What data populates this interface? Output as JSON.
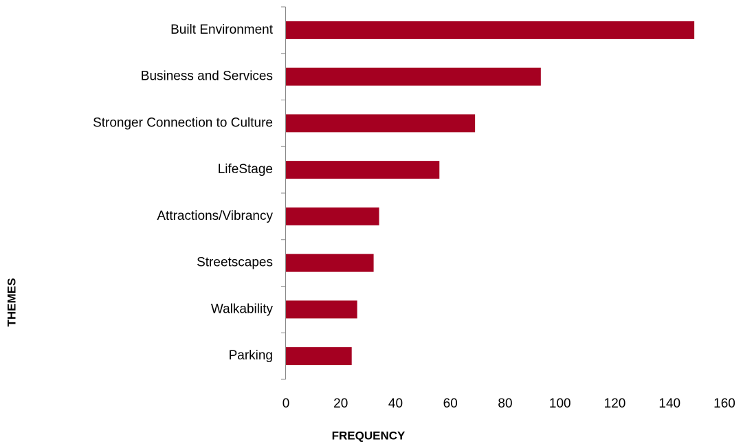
{
  "chart_data": {
    "type": "bar",
    "orientation": "horizontal",
    "xlabel": "FREQUENCY",
    "ylabel": "THEMES",
    "categories": [
      "Built Environment",
      "Business and Services",
      "Stronger Connection to Culture",
      "LifeStage",
      "Attractions/Vibrancy",
      "Streetscapes",
      "Walkability",
      "Parking"
    ],
    "values": [
      149,
      93,
      69,
      56,
      34,
      32,
      26,
      24
    ],
    "color": "#a50021",
    "xlim": [
      0,
      160
    ],
    "xticks": [
      0,
      20,
      40,
      60,
      80,
      100,
      120,
      140,
      160
    ],
    "grid": false
  }
}
